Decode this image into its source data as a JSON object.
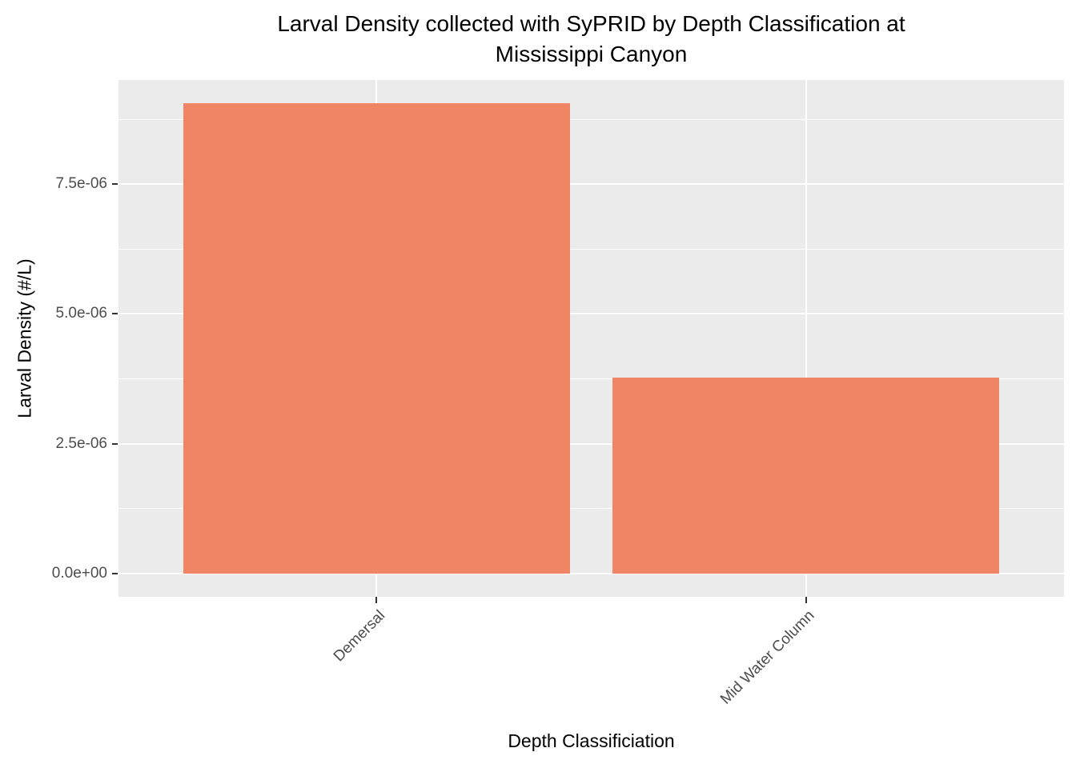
{
  "title": {
    "line1": "Larval Density collected with SyPRID by Depth Classification at",
    "line2": "Mississippi Canyon"
  },
  "axes": {
    "x_title": "Depth Classificiation",
    "y_title": "Larval Density (#/L)"
  },
  "chart_data": {
    "type": "bar",
    "title": "Larval Density collected with SyPRID by Depth Classification at Mississippi Canyon",
    "xlabel": "Depth Classificiation",
    "ylabel": "Larval Density (#/L)",
    "categories": [
      "Demersal",
      "Mid Water Column"
    ],
    "values": [
      9.06e-06,
      3.77e-06
    ],
    "y_ticks": [
      {
        "value": 0,
        "label": "0.0e+00"
      },
      {
        "value": 2.5e-06,
        "label": "2.5e-06"
      },
      {
        "value": 5e-06,
        "label": "5.0e-06"
      },
      {
        "value": 7.5e-06,
        "label": "7.5e-06"
      }
    ],
    "y_minor_ticks": [
      1.25e-06,
      3.75e-06,
      6.25e-06,
      8.75e-06
    ],
    "ylim": [
      -4.53e-07,
      9.51e-06
    ],
    "x_label_angle_deg": 45,
    "legend": "none",
    "grid": "white major and minor horizontal gridlines plus major vertical gridlines on grey panel",
    "colors": {
      "bar_fill": "#EF8565",
      "panel_background": "#EBEBEB",
      "grid": "#FFFFFF",
      "tick_mark": "#333333",
      "tick_label": "#4D4D4D",
      "text": "#000000",
      "figure_background": "#FFFFFF"
    }
  }
}
